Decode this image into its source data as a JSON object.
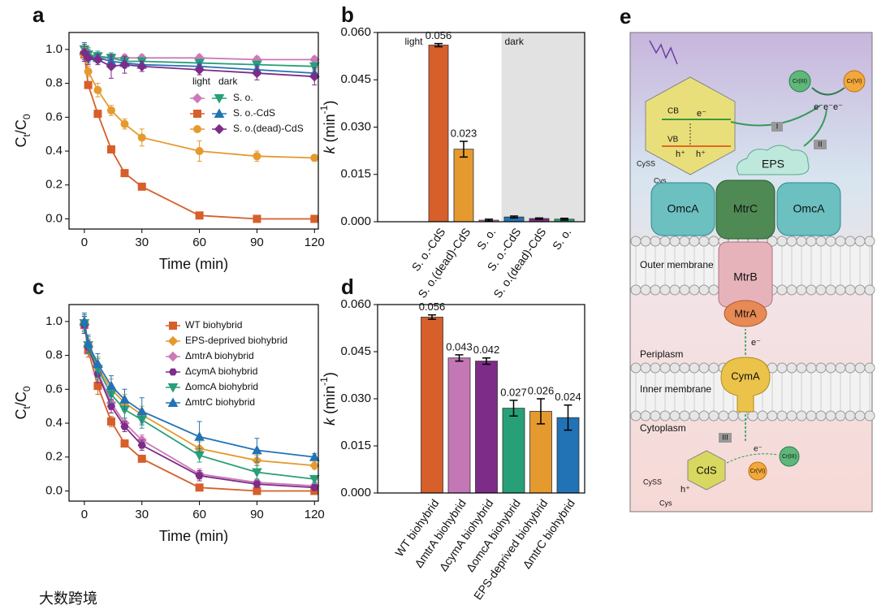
{
  "chart_data": [
    {
      "panel": "a",
      "type": "line",
      "ylabel_parts": [
        {
          "text": "C"
        },
        {
          "text": "t",
          "shift": "sub"
        },
        {
          "text": "/C"
        },
        {
          "text": "0",
          "shift": "sub"
        }
      ],
      "xlabel": "Time (min)",
      "x": [
        0,
        2,
        7,
        14,
        21,
        30,
        60,
        90,
        120
      ],
      "xlim": [
        -8,
        122
      ],
      "xticks": [
        0,
        30,
        60,
        90,
        120
      ],
      "ylim": [
        -0.06,
        1.1
      ],
      "yticks": [
        {
          "value": 0,
          "label": "0.0"
        },
        {
          "value": 0.2,
          "label": "0.2"
        },
        {
          "value": 0.4,
          "label": "0.4"
        },
        {
          "value": 0.6,
          "label": "0.6"
        },
        {
          "value": 0.8,
          "label": "0.8"
        },
        {
          "value": 1,
          "label": "1.0"
        }
      ],
      "legend_columns": [
        "light",
        "dark"
      ],
      "series": [
        {
          "name": "S. o.",
          "light": {
            "color": "#cc79b8",
            "marker": "diamond",
            "values": [
              0.97,
              0.96,
              0.95,
              0.95,
              0.95,
              0.95,
              0.95,
              0.94,
              0.94
            ],
            "errors": [
              0.04,
              0.03,
              0.02,
              0.02,
              0.02,
              0.02,
              0.02,
              0.02,
              0.02
            ]
          },
          "dark": {
            "color": "#27a077",
            "marker": "triangle-down",
            "values": [
              1.0,
              0.97,
              0.96,
              0.95,
              0.93,
              0.93,
              0.92,
              0.91,
              0.9
            ],
            "errors": [
              0.04,
              0.04,
              0.03,
              0.03,
              0.03,
              0.02,
              0.02,
              0.02,
              0.02
            ]
          }
        },
        {
          "name": "S. o.-CdS",
          "light": {
            "color": "#d65f2a",
            "marker": "square",
            "values": [
              0.97,
              0.79,
              0.62,
              0.41,
              0.27,
              0.19,
              0.02,
              0.0,
              0.0
            ],
            "errors": [
              0.03,
              0.02,
              0.02,
              0.02,
              0.015,
              0.01,
              0.01,
              0.01,
              0.01
            ]
          },
          "dark": {
            "color": "#2273b5",
            "marker": "triangle-up",
            "values": [
              0.99,
              0.96,
              0.95,
              0.93,
              0.92,
              0.91,
              0.9,
              0.88,
              0.86
            ],
            "errors": [
              0.05,
              0.04,
              0.03,
              0.03,
              0.03,
              0.02,
              0.02,
              0.03,
              0.03
            ]
          }
        },
        {
          "name": "S. o.(dead)-CdS",
          "light": {
            "color": "#e59a2f",
            "marker": "circle",
            "values": [
              0.97,
              0.87,
              0.76,
              0.64,
              0.56,
              0.48,
              0.4,
              0.37,
              0.36
            ],
            "errors": [
              0.04,
              0.03,
              0.04,
              0.03,
              0.03,
              0.05,
              0.06,
              0.03,
              0.02
            ]
          },
          "dark": {
            "color": "#7d2c88",
            "marker": "diamond",
            "values": [
              0.98,
              0.95,
              0.94,
              0.9,
              0.91,
              0.9,
              0.88,
              0.86,
              0.84
            ],
            "errors": [
              0.05,
              0.04,
              0.03,
              0.07,
              0.05,
              0.03,
              0.03,
              0.04,
              0.05
            ]
          }
        }
      ]
    },
    {
      "panel": "b",
      "type": "bar",
      "ylabel_parts": [
        {
          "text": "k",
          "italic": true
        },
        {
          "text": " (min"
        },
        {
          "text": "-1",
          "shift": "super"
        },
        {
          "text": ")"
        }
      ],
      "ylim": [
        0,
        0.06
      ],
      "yticks": [
        {
          "value": 0,
          "label": "0.000"
        },
        {
          "value": 0.015,
          "label": "0.015"
        },
        {
          "value": 0.03,
          "label": "0.030"
        },
        {
          "value": 0.045,
          "label": "0.045"
        },
        {
          "value": 0.06,
          "label": "0.060"
        }
      ],
      "groups": [
        {
          "name": "light",
          "categories": [
            "S. o.-CdS",
            "S. o.(dead)-CdS",
            "S. o."
          ],
          "values": [
            0.056,
            0.023,
            0.0005
          ],
          "errors": [
            0.0005,
            0.0025,
            0.0003
          ],
          "colors": [
            "#d65f2a",
            "#e59a2f",
            "#cc79b8"
          ],
          "value_labels": [
            "0.056",
            "0.023",
            null
          ]
        },
        {
          "name": "dark",
          "shaded": true,
          "categories": [
            "S. o.-CdS",
            "S. o.(dead)-CdS",
            "S. o."
          ],
          "values": [
            0.0015,
            0.001,
            0.0008
          ],
          "errors": [
            0.0003,
            0.0002,
            0.0003
          ],
          "colors": [
            "#2273b5",
            "#7d2c88",
            "#27a077"
          ]
        }
      ]
    },
    {
      "panel": "c",
      "type": "line",
      "ylabel_parts": [
        {
          "text": "C"
        },
        {
          "text": "t",
          "shift": "sub"
        },
        {
          "text": "/C"
        },
        {
          "text": "0",
          "shift": "sub"
        }
      ],
      "xlabel": "Time (min)",
      "x": [
        0,
        2,
        7,
        14,
        21,
        30,
        60,
        90,
        120
      ],
      "xlim": [
        -8,
        122
      ],
      "xticks": [
        0,
        30,
        60,
        90,
        120
      ],
      "ylim": [
        -0.06,
        1.1
      ],
      "yticks": [
        {
          "value": 0,
          "label": "0.0"
        },
        {
          "value": 0.2,
          "label": "0.2"
        },
        {
          "value": 0.4,
          "label": "0.4"
        },
        {
          "value": 0.6,
          "label": "0.6"
        },
        {
          "value": 0.8,
          "label": "0.8"
        },
        {
          "value": 1,
          "label": "1.0"
        }
      ],
      "series": [
        {
          "name": "WT biohybrid",
          "color": "#d65f2a",
          "marker": "square",
          "values": [
            0.98,
            0.83,
            0.62,
            0.41,
            0.28,
            0.19,
            0.02,
            0.0,
            0.0
          ],
          "errors": [
            0.05,
            0.04,
            0.05,
            0.03,
            0.02,
            0.02,
            0.02,
            0.01,
            0.01
          ]
        },
        {
          "name": "EPS-deprived biohybrid",
          "color": "#e59a2f",
          "marker": "diamond",
          "values": [
            0.99,
            0.86,
            0.73,
            0.6,
            0.52,
            0.45,
            0.25,
            0.18,
            0.15
          ],
          "errors": [
            0.05,
            0.04,
            0.06,
            0.06,
            0.05,
            0.05,
            0.04,
            0.03,
            0.02
          ]
        },
        {
          "name": "ΔmtrA biohybrid",
          "color": "#cc79b8",
          "marker": "diamond",
          "values": [
            0.98,
            0.85,
            0.7,
            0.52,
            0.4,
            0.3,
            0.1,
            0.05,
            0.03
          ],
          "errors": [
            0.05,
            0.04,
            0.05,
            0.04,
            0.03,
            0.03,
            0.03,
            0.02,
            0.01
          ]
        },
        {
          "name": "ΔcymA biohybrid",
          "color": "#7d2c88",
          "marker": "hexagon",
          "values": [
            0.98,
            0.85,
            0.69,
            0.5,
            0.38,
            0.27,
            0.09,
            0.04,
            0.02
          ],
          "errors": [
            0.05,
            0.04,
            0.05,
            0.04,
            0.03,
            0.03,
            0.03,
            0.02,
            0.01
          ]
        },
        {
          "name": "ΔomcA biohybrid",
          "color": "#27a077",
          "marker": "triangle-down",
          "values": [
            0.99,
            0.86,
            0.72,
            0.57,
            0.48,
            0.42,
            0.21,
            0.11,
            0.07
          ],
          "errors": [
            0.05,
            0.05,
            0.06,
            0.05,
            0.05,
            0.05,
            0.04,
            0.04,
            0.02
          ]
        },
        {
          "name": "ΔmtrC biohybrid",
          "color": "#2273b5",
          "marker": "triangle-up",
          "values": [
            1.0,
            0.87,
            0.75,
            0.62,
            0.54,
            0.47,
            0.32,
            0.24,
            0.2
          ],
          "errors": [
            0.05,
            0.05,
            0.06,
            0.06,
            0.06,
            0.08,
            0.09,
            0.07,
            0.02
          ]
        }
      ]
    },
    {
      "panel": "d",
      "type": "bar",
      "ylabel_parts": [
        {
          "text": "k",
          "italic": true
        },
        {
          "text": " (min"
        },
        {
          "text": "-1",
          "shift": "super"
        },
        {
          "text": ")"
        }
      ],
      "ylim": [
        0,
        0.06
      ],
      "yticks": [
        {
          "value": 0,
          "label": "0.000"
        },
        {
          "value": 0.015,
          "label": "0.015"
        },
        {
          "value": 0.03,
          "label": "0.030"
        },
        {
          "value": 0.045,
          "label": "0.045"
        },
        {
          "value": 0.06,
          "label": "0.060"
        }
      ],
      "data_labels": true,
      "categories": [
        "WT biohybrid",
        "ΔmtrA biohybrid",
        "ΔcymA biohybrid",
        "ΔomcA biohybrid",
        "EPS-deprived biohybrid",
        "ΔmtrC biohybrid"
      ],
      "values": [
        0.056,
        0.043,
        0.042,
        0.027,
        0.026,
        0.024
      ],
      "errors": [
        0.0007,
        0.001,
        0.001,
        0.0025,
        0.004,
        0.004
      ],
      "colors": [
        "#d65f2a",
        "#c477b5",
        "#7d2c88",
        "#27a077",
        "#e59a2f",
        "#2273b5"
      ]
    }
  ],
  "diagram": {
    "panel": "e",
    "labels": {
      "cb": "CB",
      "vb": "VB",
      "e1": "e⁻",
      "h1": "h⁺",
      "h2": "h⁺",
      "cyss1": "CySS",
      "cys1": "Cys",
      "cr3a": "Cr(III)",
      "cr6a": "Cr(VI)",
      "ee": "e⁻e⁻e⁻",
      "r1": "I",
      "r2": "II",
      "eps": "EPS",
      "omca1": "OmcA",
      "mtrc": "MtrC",
      "omca2": "OmcA",
      "outer": "Outer membrane",
      "mtrb": "MtrB",
      "mtra": "MtrA",
      "peri": "Periplasm",
      "inner": "Inner membrane",
      "cyma": "CymA",
      "cyto": "Cytoplasm",
      "r3": "III",
      "cds": "CdS",
      "cr3b": "Cr(III)",
      "cr6b": "Cr(VI)",
      "h3": "h⁺",
      "cyss2": "CySS",
      "cys2": "Cys",
      "e2": "e⁻",
      "e3": "e⁻"
    }
  },
  "watermark": "大数跨境"
}
